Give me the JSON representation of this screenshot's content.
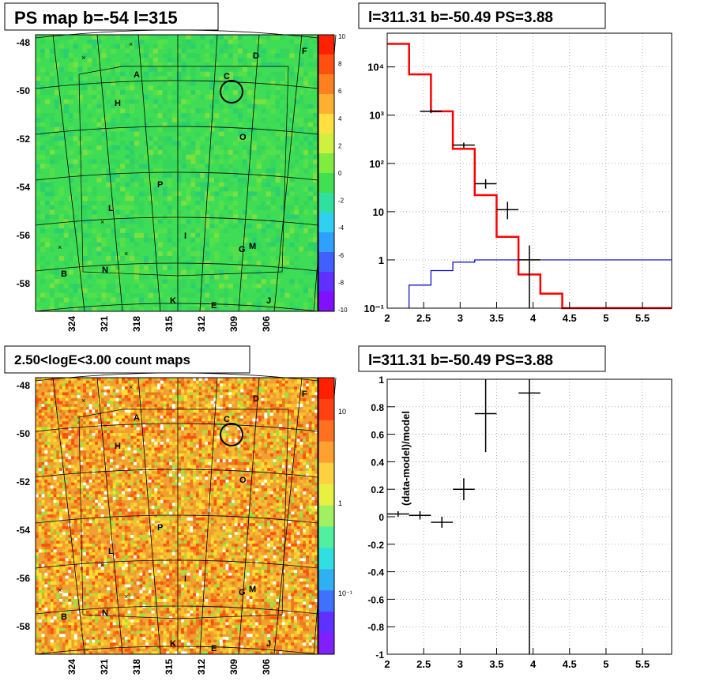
{
  "panels": {
    "ps_map": {
      "title": "PS map b=-54 l=315",
      "y_ticks": [
        "-48",
        "-50",
        "-52",
        "-54",
        "-56",
        "-58"
      ],
      "x_ticks": [
        "324",
        "321",
        "318",
        "315",
        "312",
        "309",
        "306"
      ],
      "colorbar_ticks": [
        "10",
        "8",
        "6",
        "4",
        "2",
        "0",
        "-2",
        "-4",
        "-6",
        "-8",
        "-10"
      ],
      "labels": [
        "D",
        "F",
        "A",
        "C",
        "H",
        "O",
        "P",
        "L",
        "I",
        "G",
        "M",
        "B",
        "N",
        "K",
        "E",
        "J"
      ]
    },
    "count_map": {
      "title": "2.50<logE<3.00 count maps",
      "y_ticks": [
        "-48",
        "-50",
        "-52",
        "-54",
        "-56",
        "-58"
      ],
      "x_ticks": [
        "324",
        "321",
        "318",
        "315",
        "312",
        "309",
        "306"
      ],
      "colorbar_ticks": [
        "10",
        "1",
        "10⁻¹"
      ],
      "labels": [
        "D",
        "F",
        "A",
        "C",
        "H",
        "O",
        "P",
        "L",
        "I",
        "G",
        "M",
        "B",
        "N",
        "K",
        "E",
        "J"
      ]
    },
    "spectrum": {
      "title": "l=311.31 b=-50.49 PS=3.88"
    },
    "residual": {
      "title": "l=311.31 b=-50.49 PS=3.88",
      "ylabel": "(data-model)/model"
    }
  },
  "colors": {
    "model": "#ff0000",
    "background": "#0000cc",
    "data": "#000000",
    "map_green": "#33dd55",
    "count_orange": "#f0a030"
  },
  "chart_data": [
    {
      "type": "line",
      "id": "spectrum",
      "title": "l=311.31 b=-50.49 PS=3.88",
      "xlim": [
        2,
        5.9
      ],
      "ylim": [
        0.1,
        50000
      ],
      "y_scale": "log",
      "x_ticks": [
        "2",
        "2.5",
        "3",
        "3.5",
        "4",
        "4.5",
        "5",
        "5.5"
      ],
      "y_ticks": [
        "10⁻¹",
        "1",
        "10",
        "10²",
        "10³",
        "10⁴"
      ],
      "series": [
        {
          "steps": [
            [
              2.0,
              2.3,
              30000
            ],
            [
              2.3,
              2.6,
              7000
            ],
            [
              2.6,
              2.9,
              1200
            ],
            [
              2.9,
              3.2,
              200
            ],
            [
              3.2,
              3.5,
              22
            ],
            [
              3.5,
              3.8,
              3
            ],
            [
              3.8,
              4.1,
              0.5
            ],
            [
              4.1,
              4.4,
              0.2
            ],
            [
              4.4,
              5.9,
              0.1
            ]
          ]
        },
        {
          "steps": [
            [
              2.3,
              2.6,
              0.3
            ],
            [
              2.6,
              2.9,
              0.6
            ],
            [
              2.9,
              3.2,
              0.9
            ],
            [
              3.2,
              5.9,
              1.0
            ]
          ]
        }
      ],
      "points": [
        {
          "x": 2.6,
          "y": 1200,
          "xerr": 0.15,
          "ylo": 1100,
          "yhi": 1300
        },
        {
          "x": 3.05,
          "y": 240,
          "xerr": 0.15,
          "ylo": 210,
          "yhi": 270
        },
        {
          "x": 3.35,
          "y": 38,
          "xerr": 0.15,
          "ylo": 30,
          "yhi": 47
        },
        {
          "x": 3.65,
          "y": 11,
          "xerr": 0.15,
          "ylo": 7,
          "yhi": 16
        },
        {
          "x": 3.95,
          "y": 1.0,
          "xerr": 0.15,
          "ylo": 0.1,
          "yhi": 2.0
        }
      ]
    },
    {
      "type": "scatter",
      "id": "residual",
      "title": "l=311.31 b=-50.49 PS=3.88",
      "ylabel": "(data-model)/model",
      "xlim": [
        2,
        5.9
      ],
      "ylim": [
        -1,
        1
      ],
      "x_ticks": [
        "2",
        "2.5",
        "3",
        "3.5",
        "4",
        "4.5",
        "5",
        "5.5"
      ],
      "y_ticks": [
        "-1",
        "-0.8",
        "-0.6",
        "-0.4",
        "-0.2",
        "0",
        "0.2",
        "0.4",
        "0.6",
        "0.8",
        "1"
      ],
      "points": [
        {
          "x": 2.15,
          "y": 0.02,
          "xerr": 0.15,
          "yerr": 0.02
        },
        {
          "x": 2.45,
          "y": 0.01,
          "xerr": 0.15,
          "yerr": 0.03
        },
        {
          "x": 2.75,
          "y": -0.04,
          "xerr": 0.15,
          "yerr": 0.04
        },
        {
          "x": 3.05,
          "y": 0.2,
          "xerr": 0.15,
          "yerr": 0.08
        },
        {
          "x": 3.35,
          "y": 0.75,
          "xerr": 0.15,
          "yerr": 0.28
        },
        {
          "x": 3.95,
          "y": 0.9,
          "xerr": 0.15,
          "yerr": 2.0
        }
      ]
    }
  ]
}
